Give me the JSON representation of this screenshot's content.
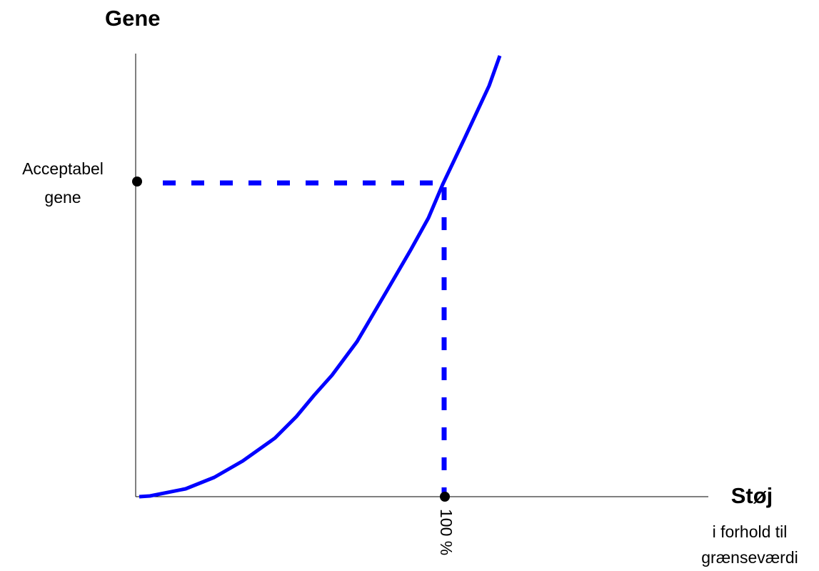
{
  "y_axis_title": "Gene",
  "x_axis_title": "Støj",
  "x_axis_subtitle": [
    "i forhold til",
    "grænseværdi"
  ],
  "threshold_label": [
    "Acceptabel",
    "gene"
  ],
  "x_marker_label": "100 %"
}
